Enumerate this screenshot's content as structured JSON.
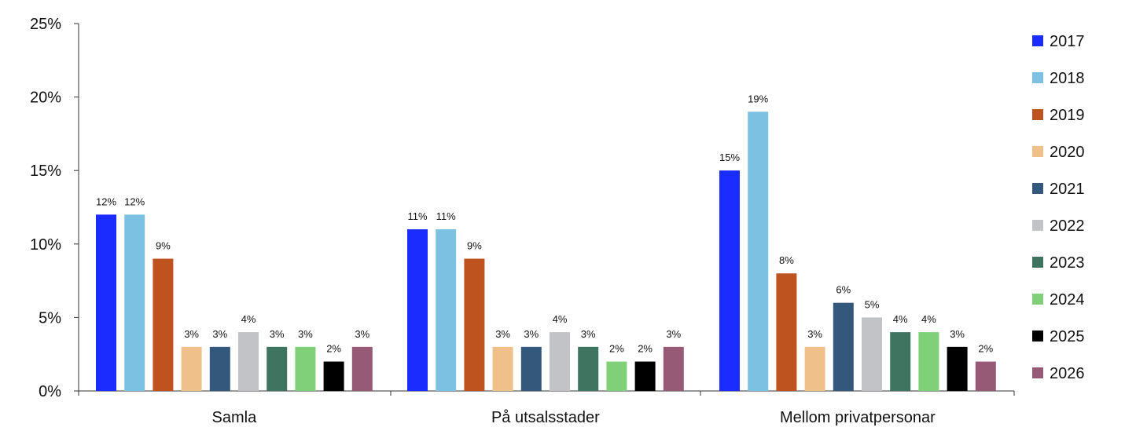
{
  "chart_data": {
    "type": "bar",
    "categories": [
      "Samla",
      "På utsalsstader",
      "Mellom privatpersonar"
    ],
    "series": [
      {
        "name": "2017",
        "color": "#1a2cff",
        "values": [
          12,
          11,
          15
        ]
      },
      {
        "name": "2018",
        "color": "#7cc0e2",
        "values": [
          12,
          11,
          19
        ]
      },
      {
        "name": "2019",
        "color": "#bf5320",
        "values": [
          9,
          9,
          8
        ]
      },
      {
        "name": "2020",
        "color": "#f0c08a",
        "values": [
          3,
          3,
          3
        ]
      },
      {
        "name": "2021",
        "color": "#34587c",
        "values": [
          3,
          3,
          6
        ]
      },
      {
        "name": "2022",
        "color": "#c1c3c6",
        "values": [
          4,
          4,
          5
        ]
      },
      {
        "name": "2023",
        "color": "#3f7560",
        "values": [
          3,
          3,
          4
        ]
      },
      {
        "name": "2024",
        "color": "#80d07a",
        "values": [
          3,
          2,
          4
        ]
      },
      {
        "name": "2025",
        "color": "#000000",
        "values": [
          2,
          2,
          3
        ]
      },
      {
        "name": "2026",
        "color": "#965a76",
        "values": [
          3,
          3,
          2
        ]
      }
    ],
    "y_ticks": [
      "0%",
      "5%",
      "10%",
      "15%",
      "20%",
      "25%"
    ],
    "value_suffix": "%",
    "ylim": [
      0,
      25
    ],
    "legend_position": "right",
    "grid": false
  }
}
